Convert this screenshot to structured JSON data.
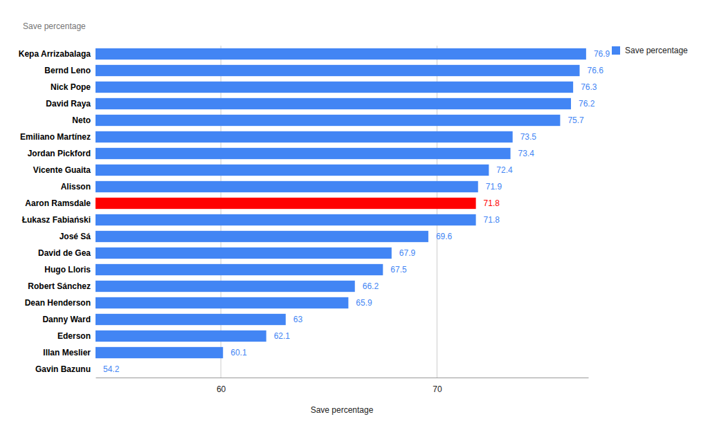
{
  "chart_data": {
    "type": "bar",
    "orientation": "horizontal",
    "title": "Save percentage",
    "xlabel": "Save percentage",
    "categories": [
      "Kepa Arrizabalaga",
      "Bernd Leno",
      "Nick Pope",
      "David Raya",
      "Neto",
      "Emiliano Martínez",
      "Jordan Pickford",
      "Vicente Guaita",
      "Alisson",
      "Aaron Ramsdale",
      "Łukasz Fabiański",
      "José Sá",
      "David de Gea",
      "Hugo Lloris",
      "Robert Sánchez",
      "Dean Henderson",
      "Danny Ward",
      "Ederson",
      "Illan Meslier",
      "Gavin Bazunu"
    ],
    "series": [
      {
        "name": "Save percentage",
        "color": "#4285f4",
        "colors": [
          "#4285f4",
          "#4285f4",
          "#4285f4",
          "#4285f4",
          "#4285f4",
          "#4285f4",
          "#4285f4",
          "#4285f4",
          "#4285f4",
          "#ff0000",
          "#4285f4",
          "#4285f4",
          "#4285f4",
          "#4285f4",
          "#4285f4",
          "#4285f4",
          "#4285f4",
          "#4285f4",
          "#4285f4",
          "#4285f4"
        ],
        "values": [
          76.9,
          76.6,
          76.3,
          76.2,
          75.7,
          73.5,
          73.4,
          72.4,
          71.9,
          71.8,
          71.8,
          69.6,
          67.9,
          67.5,
          66.2,
          65.9,
          63,
          62.1,
          60.1,
          54.2
        ]
      }
    ],
    "xlim": [
      54.2,
      77
    ],
    "xticks": [
      60,
      70
    ],
    "grid": true,
    "legend": "top-right",
    "data_labels": true
  }
}
